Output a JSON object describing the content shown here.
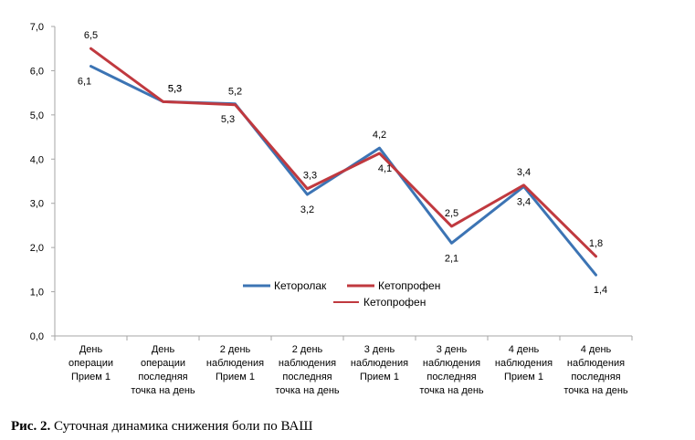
{
  "chart_data": {
    "type": "line",
    "categories": [
      [
        "День",
        "операции",
        "Прием 1"
      ],
      [
        "День",
        "операции",
        "последняя",
        "точка на день"
      ],
      [
        "2 день",
        "наблюдения",
        "Прием 1"
      ],
      [
        "2 день",
        "наблюдения",
        "последняя",
        "точка на день"
      ],
      [
        "3 день",
        "наблюдения",
        "Прием 1"
      ],
      [
        "3 день",
        "наблюдения",
        "последняя",
        "точка на день"
      ],
      [
        "4 день",
        "наблюдения",
        "Прием 1"
      ],
      [
        "4 день",
        "наблюдения",
        "последняя",
        "точка на день"
      ]
    ],
    "ylim": [
      0,
      7
    ],
    "yticks": [
      "0,0",
      "1,0",
      "2,0",
      "3,0",
      "4,0",
      "5,0",
      "6,0",
      "7,0"
    ],
    "series": [
      {
        "name": "Кеторолак",
        "color": "#3c74b4",
        "values": [
          6.1,
          5.3,
          5.25,
          3.2,
          4.25,
          2.1,
          3.38,
          1.38
        ],
        "labels": [
          "6,1",
          "5,3",
          "5,3",
          "3,2",
          "4,2",
          "2,1",
          "3,4",
          "1,4"
        ]
      },
      {
        "name": "Кетопрофен",
        "color": "#c0393f",
        "values": [
          6.5,
          5.3,
          5.23,
          3.33,
          4.13,
          2.48,
          3.41,
          1.8
        ],
        "labels": [
          "6,5",
          "5,3",
          "5,2",
          "3,3",
          "4,1",
          "2,5",
          "3,4",
          "1,8"
        ]
      }
    ],
    "legend": {
      "placement": "bottom-center",
      "entries": [
        "Кеторолак",
        "Кетопрофен"
      ],
      "extra_entry": "Кетопрофен"
    },
    "grid": false
  },
  "caption": {
    "bold": "Рис. 2.",
    "text": "Суточная динамика снижения боли по ВАШ"
  }
}
